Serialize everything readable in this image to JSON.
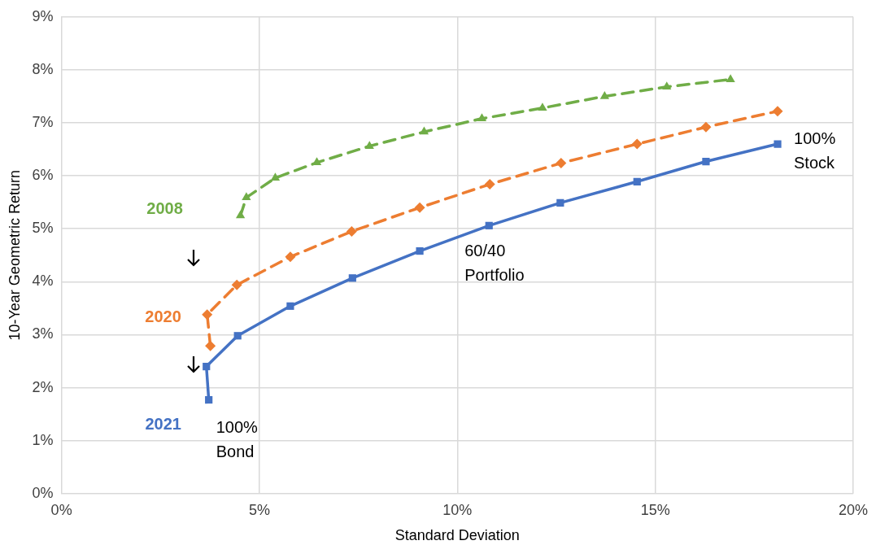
{
  "chart_data": {
    "type": "line",
    "xlabel": "Standard Deviation",
    "ylabel": "10-Year Geometric Return",
    "xlim": [
      0,
      20
    ],
    "xticks": [
      {
        "value": 0,
        "label": "0%"
      },
      {
        "value": 5,
        "label": "5%"
      },
      {
        "value": 10,
        "label": "10%"
      },
      {
        "value": 15,
        "label": "15%"
      },
      {
        "value": 20,
        "label": "20%"
      }
    ],
    "ylim": [
      0,
      9
    ],
    "yticks": [
      {
        "value": 0,
        "label": "0%"
      },
      {
        "value": 1,
        "label": "1%"
      },
      {
        "value": 2,
        "label": "2%"
      },
      {
        "value": 3,
        "label": "3%"
      },
      {
        "value": 4,
        "label": "4%"
      },
      {
        "value": 5,
        "label": "5%"
      },
      {
        "value": 6,
        "label": "6%"
      },
      {
        "value": 7,
        "label": "7%"
      },
      {
        "value": 8,
        "label": "8%"
      },
      {
        "value": 9,
        "label": "9%"
      }
    ],
    "grid": true,
    "legend": false,
    "series": [
      {
        "name": "2008",
        "color": "#70ad47",
        "marker": "triangle",
        "line_style": "dashed",
        "x": [
          4.52,
          4.67,
          5.4,
          6.45,
          7.78,
          9.16,
          10.62,
          12.15,
          13.72,
          15.29,
          16.9
        ],
        "values": [
          5.25,
          5.59,
          5.96,
          6.25,
          6.56,
          6.83,
          7.08,
          7.28,
          7.5,
          7.68,
          7.82
        ]
      },
      {
        "name": "2020",
        "color": "#ed7d31",
        "marker": "diamond",
        "line_style": "dashed",
        "x": [
          3.76,
          3.68,
          4.43,
          5.78,
          7.33,
          9.05,
          10.82,
          12.62,
          14.54,
          16.28,
          18.09
        ],
        "values": [
          2.79,
          3.38,
          3.94,
          4.47,
          4.95,
          5.4,
          5.84,
          6.24,
          6.6,
          6.92,
          7.22
        ]
      },
      {
        "name": "2021",
        "color": "#4472c4",
        "marker": "square",
        "line_style": "solid",
        "x": [
          3.72,
          3.66,
          4.45,
          5.78,
          7.35,
          9.05,
          10.8,
          12.6,
          14.54,
          16.28,
          18.09
        ],
        "values": [
          1.77,
          2.4,
          2.98,
          3.54,
          4.07,
          4.58,
          5.06,
          5.49,
          5.89,
          6.27,
          6.6
        ]
      }
    ],
    "annotations": [
      {
        "text": "100%\nBond",
        "x": 3.72,
        "y": 1.77
      },
      {
        "text": "60/40\nPortfolio",
        "x": 10.8,
        "y": 5.06
      },
      {
        "text": "100%\nStock",
        "x": 18.09,
        "y": 6.6
      }
    ]
  }
}
